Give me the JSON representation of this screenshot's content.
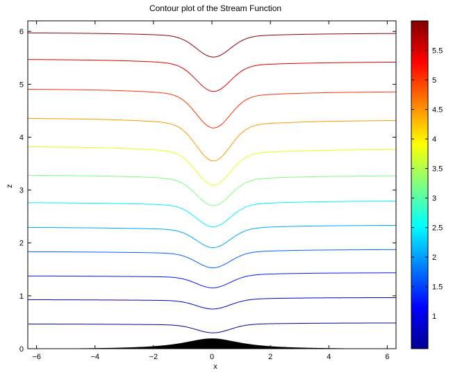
{
  "chart_data": {
    "type": "line",
    "subtype": "contour",
    "title": "Contour plot of the Stream Function",
    "xlabel": "x",
    "ylabel": "z",
    "xlim": [
      -6.3,
      6.3
    ],
    "ylim": [
      0,
      6.2
    ],
    "xticks": [
      -6,
      -4,
      -2,
      0,
      2,
      4,
      6
    ],
    "xtick_labels": [
      "−6",
      "−4",
      "−2",
      "0",
      "2",
      "4",
      "6"
    ],
    "yticks": [
      0,
      1,
      2,
      3,
      4,
      5,
      6
    ],
    "ytick_labels": [
      "0",
      "1",
      "2",
      "3",
      "4",
      "5",
      "6"
    ],
    "grid": false,
    "colormap": "jet",
    "colorbar": {
      "range": [
        0.45,
        6.0
      ],
      "ticks": [
        1,
        1.5,
        2,
        2.5,
        3,
        3.5,
        4,
        4.5,
        5,
        5.5
      ],
      "tick_labels": [
        "1",
        "1.5",
        "2",
        "2.5",
        "3",
        "3.5",
        "4",
        "4.5",
        "5",
        "5.5"
      ]
    },
    "topography": {
      "color": "#000000",
      "peak_x": 0,
      "peak_z": 0.2,
      "width": 1.2
    },
    "series": [
      {
        "level": 0.47,
        "color": "#00008f",
        "left": 0.47,
        "right": 0.49,
        "dip": 0.18
      },
      {
        "level": 0.93,
        "color": "#0000c8",
        "left": 0.93,
        "right": 0.97,
        "dip": 0.2
      },
      {
        "level": 1.38,
        "color": "#0018ff",
        "left": 1.38,
        "right": 1.44,
        "dip": 0.26
      },
      {
        "level": 1.84,
        "color": "#0060ff",
        "left": 1.84,
        "right": 1.88,
        "dip": 0.33
      },
      {
        "level": 2.3,
        "color": "#00a8ff",
        "left": 2.3,
        "right": 2.34,
        "dip": 0.41
      },
      {
        "level": 2.77,
        "color": "#00f0ff",
        "left": 2.77,
        "right": 2.8,
        "dip": 0.48
      },
      {
        "level": 3.29,
        "color": "#7fff80",
        "left": 3.29,
        "right": 3.28,
        "dip": 0.58
      },
      {
        "level": 3.83,
        "color": "#e8ff18",
        "left": 3.83,
        "right": 3.78,
        "dip": 0.71
      },
      {
        "level": 4.37,
        "color": "#ff9800",
        "left": 4.37,
        "right": 4.33,
        "dip": 0.8
      },
      {
        "level": 4.92,
        "color": "#ff3000",
        "left": 4.92,
        "right": 4.87,
        "dip": 0.72
      },
      {
        "level": 5.48,
        "color": "#dc0000",
        "left": 5.48,
        "right": 5.43,
        "dip": 0.59
      },
      {
        "level": 5.98,
        "color": "#8f0000",
        "left": 5.98,
        "right": 5.97,
        "dip": 0.46
      }
    ]
  }
}
